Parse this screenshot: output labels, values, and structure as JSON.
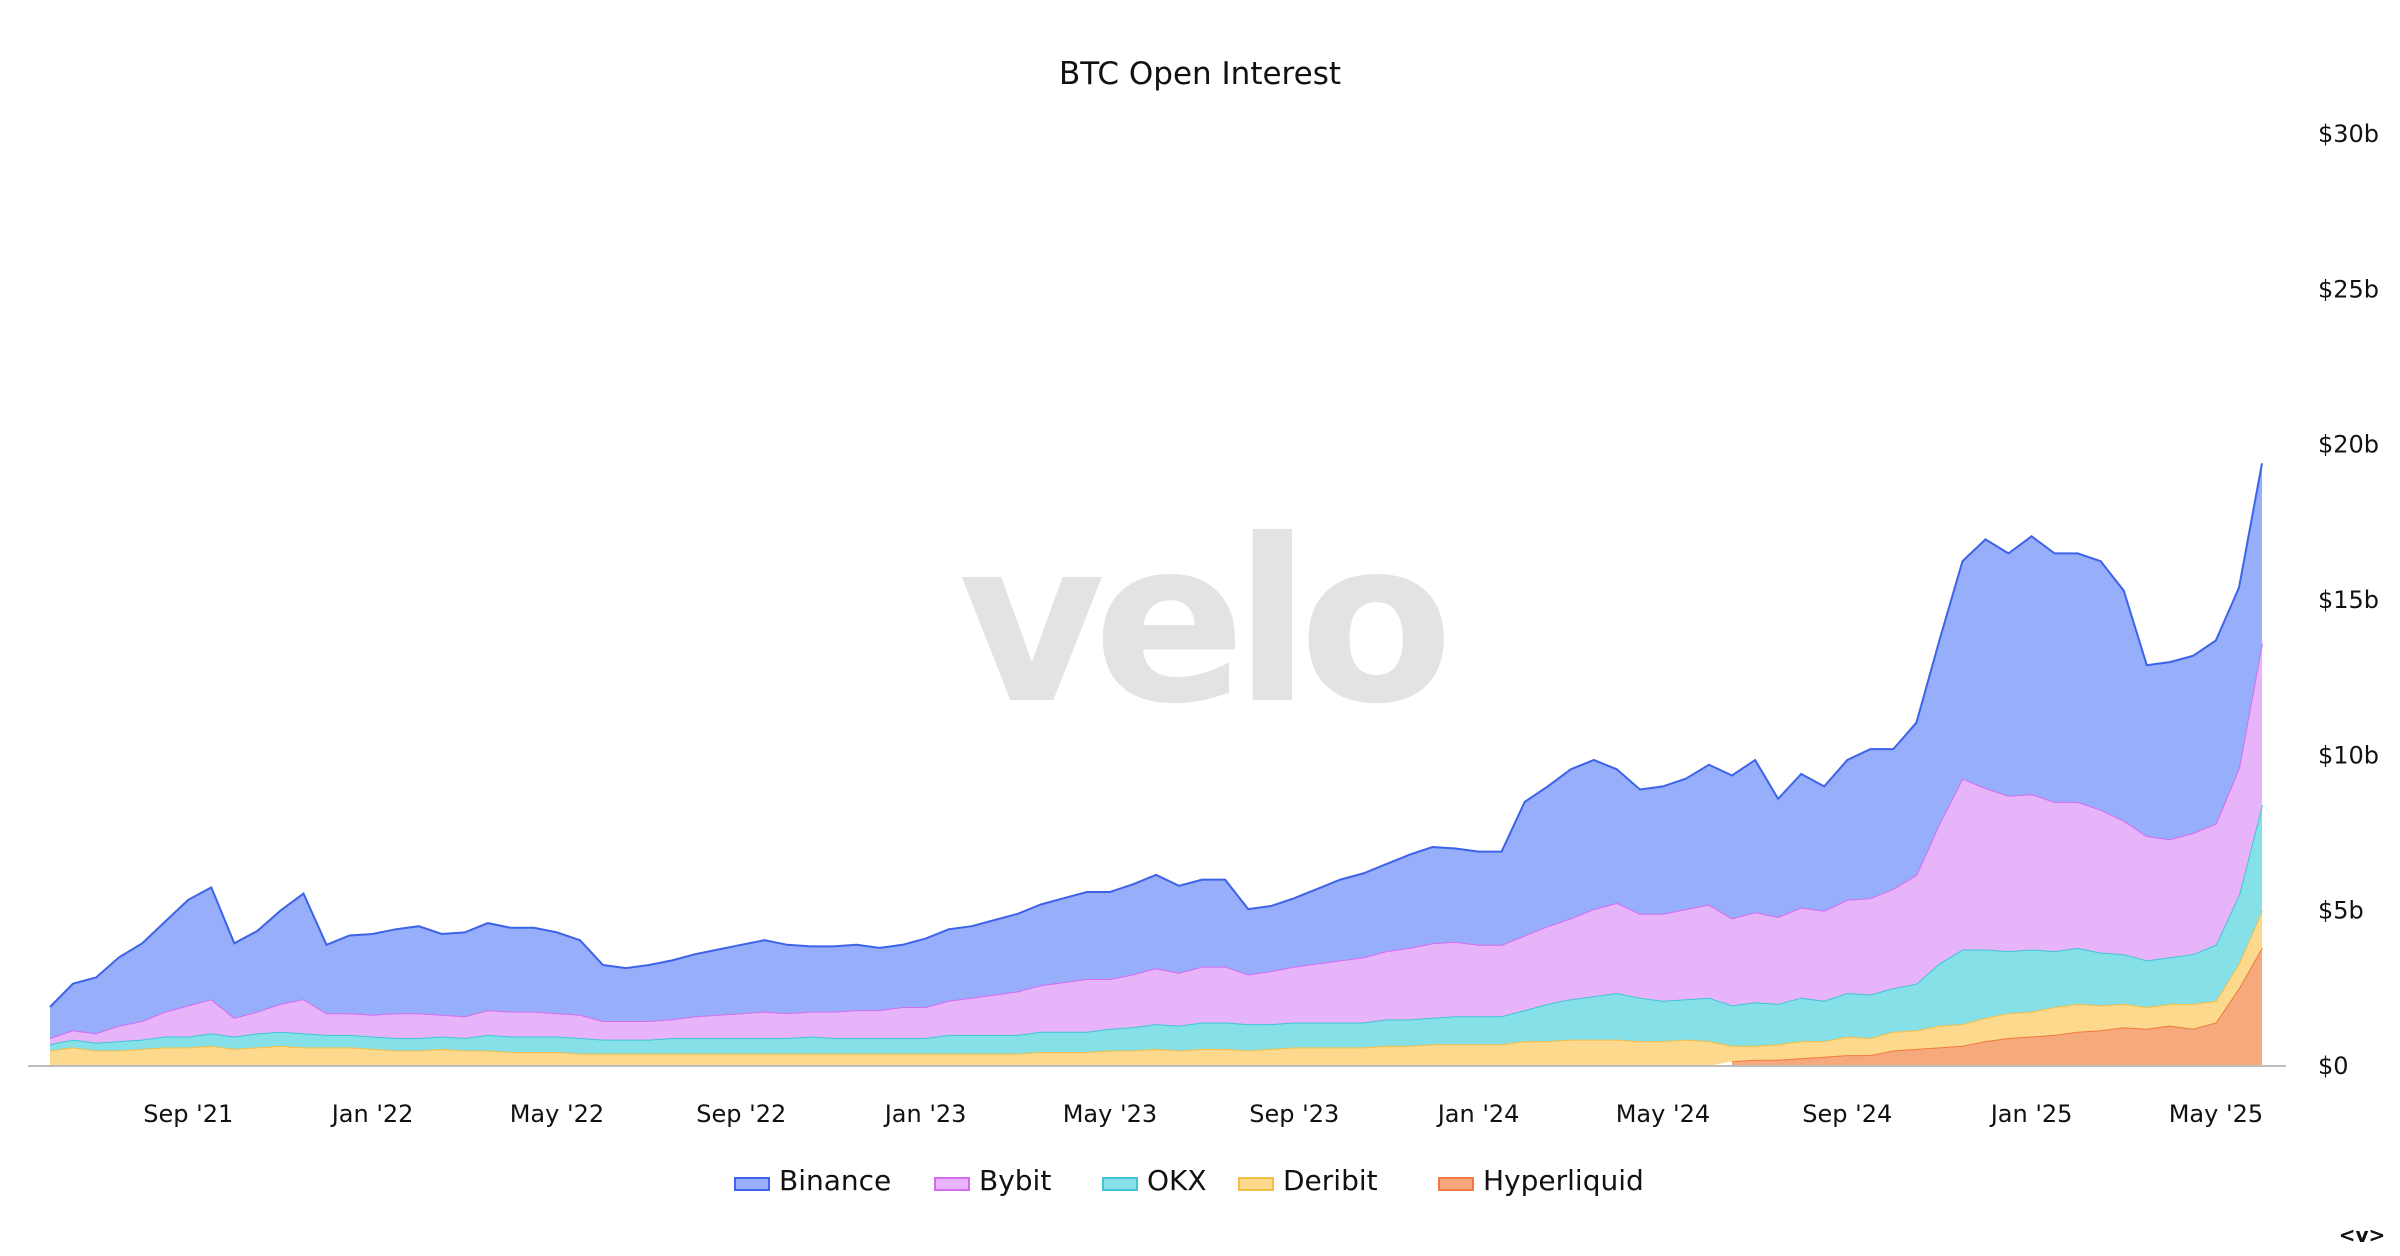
{
  "watermark": "velo",
  "nav_glyph": "<v>",
  "chart_data": {
    "type": "area",
    "stacked": true,
    "title": "BTC Open Interest",
    "xlabel": "",
    "ylabel": "",
    "ylim": [
      0,
      30
    ],
    "y_unit": "billion USD",
    "y_ticks": [
      0,
      5,
      10,
      15,
      20,
      25,
      30
    ],
    "y_tick_labels": [
      "$0",
      "$5b",
      "$10b",
      "$15b",
      "$20b",
      "$25b",
      "$30b"
    ],
    "x_start": "2021-06",
    "x_step": "half-month",
    "x_tick_labels": [
      "Sep '21",
      "Jan '22",
      "May '22",
      "Sep '22",
      "Jan '23",
      "May '23",
      "Sep '23",
      "Jan '24",
      "May '24",
      "Sep '24",
      "Jan '25",
      "May '25"
    ],
    "x_tick_index": [
      6,
      14,
      22,
      30,
      38,
      46,
      54,
      62,
      70,
      78,
      86,
      94
    ],
    "legend_position": "bottom-center",
    "series": [
      {
        "name": "Hyperliquid",
        "color": "#f6a97c",
        "line": "#f07a3e",
        "values": [
          0,
          0,
          0,
          0,
          0,
          0,
          0,
          0,
          0,
          0,
          0,
          0,
          0,
          0,
          0,
          0,
          0,
          0,
          0,
          0,
          0,
          0,
          0,
          0,
          0,
          0,
          0,
          0,
          0,
          0,
          0,
          0,
          0,
          0,
          0,
          0,
          0,
          0,
          0,
          0,
          0,
          0,
          0,
          0,
          0,
          0,
          0,
          0,
          0,
          0,
          0,
          0,
          0,
          0,
          0,
          0,
          0,
          0,
          0,
          0,
          0,
          0,
          0,
          0,
          0,
          0,
          0,
          0,
          0,
          0,
          0,
          0,
          0,
          0.15,
          0.2,
          0.2,
          0.25,
          0.3,
          0.35,
          0.35,
          0.5,
          0.55,
          0.6,
          0.65,
          0.8,
          0.9,
          0.95,
          1.0,
          1.1,
          1.15,
          1.25,
          1.2,
          1.3,
          1.2,
          1.4,
          2.5,
          3.8
        ]
      },
      {
        "name": "Deribit",
        "color": "#fcd98d",
        "line": "#f3be4a",
        "values": [
          0.5,
          0.6,
          0.5,
          0.5,
          0.55,
          0.6,
          0.6,
          0.65,
          0.55,
          0.6,
          0.65,
          0.6,
          0.6,
          0.6,
          0.55,
          0.5,
          0.5,
          0.55,
          0.5,
          0.5,
          0.45,
          0.45,
          0.45,
          0.4,
          0.4,
          0.4,
          0.4,
          0.4,
          0.4,
          0.4,
          0.4,
          0.4,
          0.4,
          0.4,
          0.4,
          0.4,
          0.4,
          0.4,
          0.4,
          0.4,
          0.4,
          0.4,
          0.4,
          0.45,
          0.45,
          0.45,
          0.5,
          0.5,
          0.55,
          0.5,
          0.55,
          0.55,
          0.5,
          0.55,
          0.6,
          0.6,
          0.6,
          0.6,
          0.65,
          0.65,
          0.7,
          0.7,
          0.7,
          0.7,
          0.8,
          0.8,
          0.85,
          0.85,
          0.85,
          0.8,
          0.8,
          0.85,
          0.8,
          0.5,
          0.45,
          0.5,
          0.55,
          0.5,
          0.6,
          0.55,
          0.6,
          0.6,
          0.7,
          0.7,
          0.75,
          0.8,
          0.8,
          0.9,
          0.9,
          0.8,
          0.75,
          0.7,
          0.7,
          0.8,
          0.7,
          0.8,
          1.2
        ]
      },
      {
        "name": "OKX",
        "color": "#86e0e8",
        "line": "#3fc6d4",
        "values": [
          0.2,
          0.25,
          0.25,
          0.3,
          0.3,
          0.35,
          0.35,
          0.4,
          0.4,
          0.45,
          0.45,
          0.45,
          0.4,
          0.4,
          0.4,
          0.4,
          0.4,
          0.4,
          0.4,
          0.5,
          0.5,
          0.5,
          0.5,
          0.5,
          0.45,
          0.45,
          0.45,
          0.5,
          0.5,
          0.5,
          0.5,
          0.5,
          0.5,
          0.55,
          0.5,
          0.5,
          0.5,
          0.5,
          0.5,
          0.6,
          0.6,
          0.6,
          0.6,
          0.65,
          0.65,
          0.65,
          0.7,
          0.75,
          0.8,
          0.8,
          0.85,
          0.85,
          0.85,
          0.8,
          0.8,
          0.8,
          0.8,
          0.8,
          0.85,
          0.85,
          0.85,
          0.9,
          0.9,
          0.9,
          1.0,
          1.2,
          1.3,
          1.4,
          1.5,
          1.4,
          1.3,
          1.3,
          1.4,
          1.3,
          1.4,
          1.3,
          1.4,
          1.3,
          1.4,
          1.4,
          1.4,
          1.5,
          2.0,
          2.4,
          2.2,
          2.0,
          2.0,
          1.8,
          1.8,
          1.7,
          1.6,
          1.5,
          1.5,
          1.6,
          1.8,
          2.2,
          3.4
        ]
      },
      {
        "name": "Bybit",
        "color": "#e7b4fa",
        "line": "#d56cf1",
        "values": [
          0.2,
          0.3,
          0.3,
          0.5,
          0.6,
          0.8,
          1.0,
          1.1,
          0.6,
          0.7,
          0.9,
          1.1,
          0.7,
          0.7,
          0.7,
          0.8,
          0.8,
          0.7,
          0.7,
          0.8,
          0.8,
          0.8,
          0.75,
          0.75,
          0.6,
          0.6,
          0.6,
          0.6,
          0.7,
          0.75,
          0.8,
          0.85,
          0.8,
          0.8,
          0.85,
          0.9,
          0.9,
          1.0,
          1.0,
          1.1,
          1.2,
          1.3,
          1.4,
          1.5,
          1.6,
          1.7,
          1.6,
          1.7,
          1.8,
          1.7,
          1.8,
          1.8,
          1.6,
          1.7,
          1.8,
          1.9,
          2.0,
          2.1,
          2.2,
          2.3,
          2.4,
          2.4,
          2.3,
          2.3,
          2.4,
          2.5,
          2.6,
          2.8,
          2.9,
          2.7,
          2.8,
          2.9,
          3.0,
          2.8,
          2.9,
          2.8,
          2.9,
          2.9,
          3.0,
          3.1,
          3.2,
          3.5,
          4.5,
          5.5,
          5.2,
          5.0,
          5.0,
          4.8,
          4.7,
          4.6,
          4.3,
          4.0,
          3.8,
          3.9,
          3.9,
          4.1,
          5.2
        ]
      },
      {
        "name": "Binance",
        "color": "#97aefa",
        "line": "#3c63e8",
        "values": [
          1.0,
          1.5,
          1.8,
          2.2,
          2.5,
          2.9,
          3.4,
          3.6,
          2.4,
          2.6,
          3.0,
          3.4,
          2.2,
          2.5,
          2.6,
          2.7,
          2.8,
          2.6,
          2.7,
          2.8,
          2.7,
          2.7,
          2.6,
          2.4,
          1.8,
          1.7,
          1.8,
          1.9,
          2.0,
          2.1,
          2.2,
          2.3,
          2.2,
          2.1,
          2.1,
          2.1,
          2.0,
          2.0,
          2.2,
          2.3,
          2.3,
          2.4,
          2.5,
          2.6,
          2.7,
          2.8,
          2.8,
          2.9,
          3.0,
          2.8,
          2.8,
          2.8,
          2.1,
          2.1,
          2.2,
          2.4,
          2.6,
          2.7,
          2.8,
          3.0,
          3.1,
          3.0,
          3.0,
          3.0,
          4.3,
          4.5,
          4.8,
          4.8,
          4.3,
          4.0,
          4.1,
          4.2,
          4.5,
          4.6,
          4.9,
          3.8,
          4.3,
          4.0,
          4.5,
          4.8,
          4.5,
          4.9,
          5.9,
          7.0,
          8.0,
          7.8,
          8.3,
          8.0,
          8.0,
          8.0,
          7.4,
          5.5,
          5.7,
          5.7,
          5.9,
          5.8,
          5.8
        ]
      }
    ],
    "legend_order": [
      "Binance",
      "Bybit",
      "OKX",
      "Deribit",
      "Hyperliquid"
    ]
  }
}
